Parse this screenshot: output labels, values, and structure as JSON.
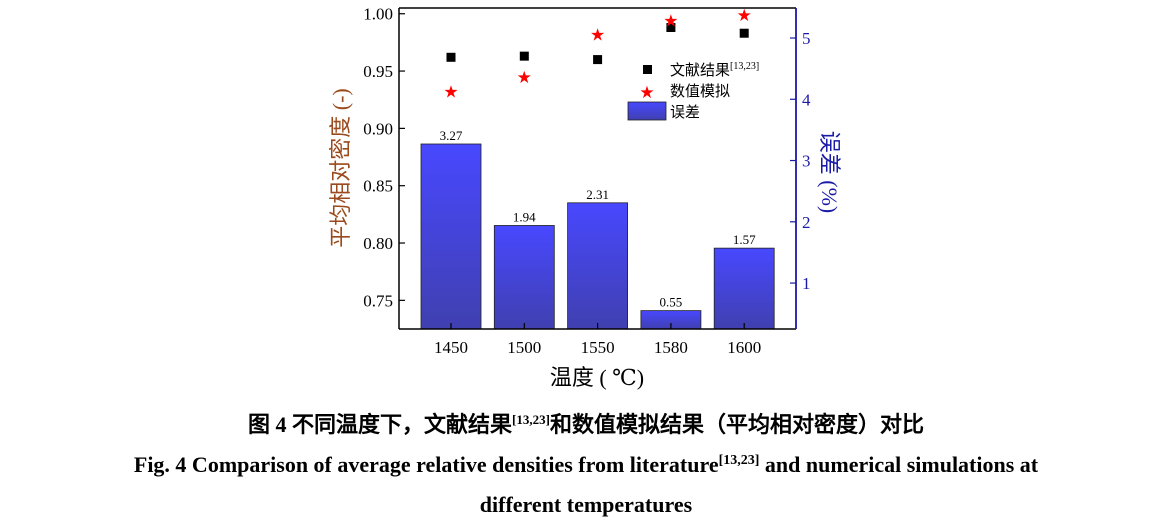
{
  "chart_data": {
    "type": "bar+scatter",
    "categories": [
      "1450",
      "1500",
      "1550",
      "1580",
      "1600"
    ],
    "xlabel": "温度 ( ℃)",
    "ylabel_left": "平均相对密度 (-)",
    "ylabel_right": "误差 (%)",
    "ylim_left": [
      0.725,
      1.005
    ],
    "ylim_right": [
      0.25,
      5.49
    ],
    "yticks_left": [
      "0.75",
      "0.80",
      "0.85",
      "0.90",
      "0.95",
      "1.00"
    ],
    "yticks_right": [
      "1",
      "2",
      "3",
      "4",
      "5"
    ],
    "legend_placement": "upper-right",
    "grid": false,
    "series": [
      {
        "name": "文献结果",
        "name_sup": "[13,23]",
        "kind": "scatter",
        "marker": "square",
        "color": "#000000",
        "axis": "left",
        "values": [
          0.962,
          0.963,
          0.96,
          0.988,
          0.983
        ]
      },
      {
        "name": "数值模拟",
        "kind": "scatter",
        "marker": "star",
        "color": "#ff0000",
        "axis": "left",
        "values": [
          0.932,
          0.945,
          0.982,
          0.994,
          0.999
        ]
      },
      {
        "name": "误差",
        "kind": "bar",
        "color": "#4646f5",
        "axis": "right",
        "values": [
          3.27,
          1.94,
          2.31,
          0.55,
          1.57
        ],
        "labels": [
          "3.27",
          "1.94",
          "2.31",
          "0.55",
          "1.57"
        ]
      }
    ]
  },
  "colors": {
    "left_label": "#9a4a1c",
    "right_axis": "#1a1aa8",
    "bar_top": "#4848ff",
    "bar_bottom": "#4040b0"
  },
  "caption": {
    "cn_a": "图 4  不同温度下，文献结果",
    "cn_sup": "[13,23]",
    "cn_b": "和数值模拟结果（平均相对密度）对比",
    "en_a": "Fig. 4 Comparison of average relative densities from literature",
    "en_sup": "[13,23]",
    "en_b": " and numerical simulations at",
    "en_line2": "different temperatures"
  }
}
